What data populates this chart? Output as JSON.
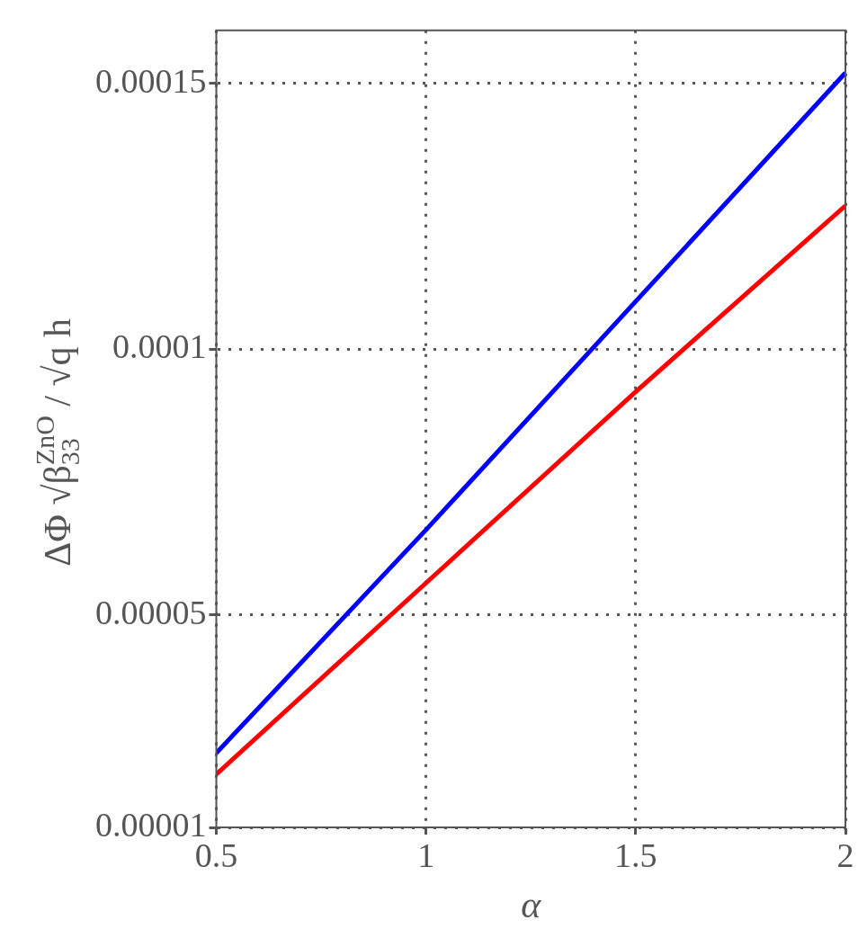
{
  "chart_data": {
    "type": "line",
    "xlabel": "α",
    "ylabel": "ΔΦ √β$_{33}$$^{ZnO}$ / √q h",
    "xlim": [
      0.5,
      2
    ],
    "xticks": [
      0.5,
      1,
      1.5,
      2
    ],
    "ylim": [
      1e-05,
      0.00016
    ],
    "yticks": [
      {
        "value": 1e-05,
        "label": "0.00001"
      },
      {
        "value": 5e-05,
        "label": "0.00005"
      },
      {
        "value": 0.0001,
        "label": "0.0001"
      },
      {
        "value": 0.00015,
        "label": "0.00015"
      }
    ],
    "grid": true,
    "line_style": "solid",
    "marker": "none",
    "x": [
      0.5,
      1,
      1.5,
      2
    ],
    "series": [
      {
        "color": "#0000ff",
        "values": [
          2.4e-05,
          6.6e-05,
          0.000109,
          0.000152
        ]
      },
      {
        "color": "#ff0000",
        "values": [
          2e-05,
          5.6e-05,
          9.2e-05,
          0.000127
        ]
      }
    ]
  }
}
